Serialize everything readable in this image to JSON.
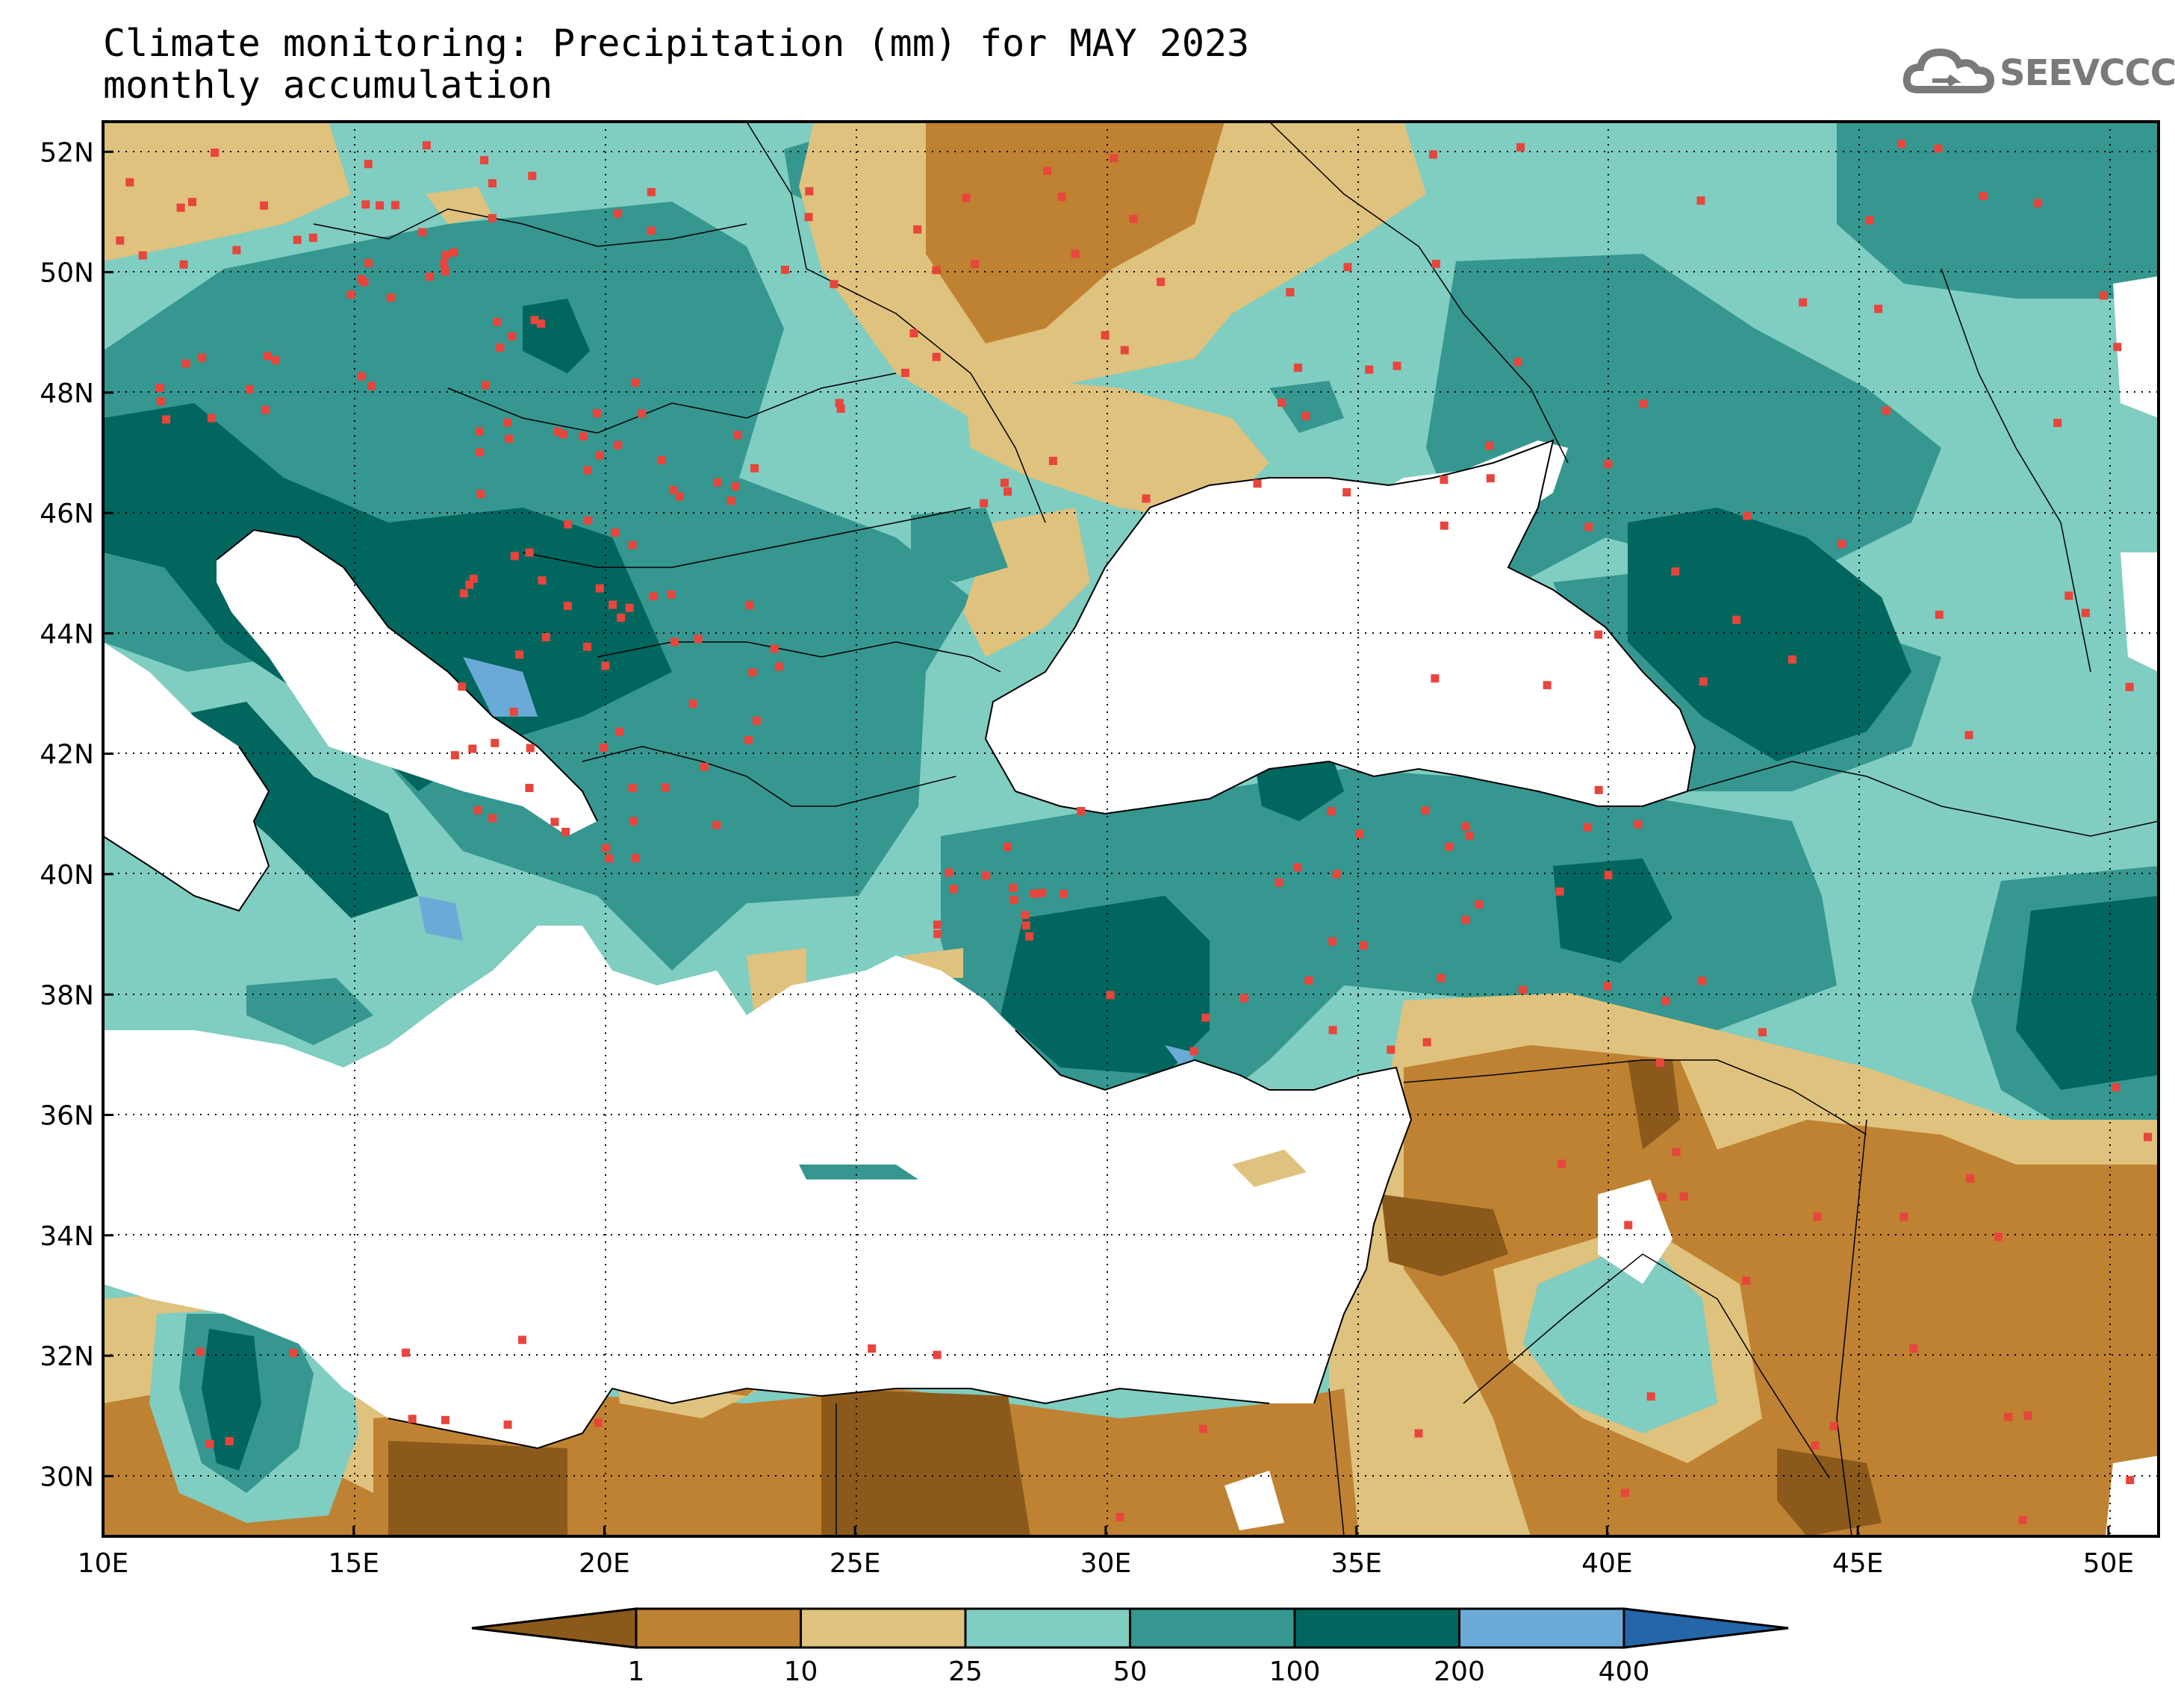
{
  "header": {
    "title_line1": "Climate monitoring: Precipitation (mm) for MAY 2023",
    "title_line2": "monthly accumulation"
  },
  "logo": {
    "text": "SEEVCCC",
    "icon": "cloud-icon"
  },
  "map": {
    "lon_range": [
      10,
      51
    ],
    "lat_range": [
      29,
      52.5
    ],
    "x_tick_labels": [
      "10E",
      "15E",
      "20E",
      "25E",
      "30E",
      "35E",
      "40E",
      "45E",
      "50E"
    ],
    "y_tick_labels": [
      "30N",
      "32N",
      "34N",
      "36N",
      "38N",
      "40N",
      "42N",
      "44N",
      "46N",
      "48N",
      "50N",
      "52N"
    ],
    "gridlines": "dotted",
    "station_marker_color": "#e8453c"
  },
  "colorbar": {
    "labels": [
      "1",
      "10",
      "25",
      "50",
      "100",
      "200",
      "400"
    ],
    "colors": [
      "#8b5a1a",
      "#bf8232",
      "#dfc27d",
      "#80cdc1",
      "#35978f",
      "#01665e",
      "#6aaad6",
      "#2466a8"
    ]
  }
}
